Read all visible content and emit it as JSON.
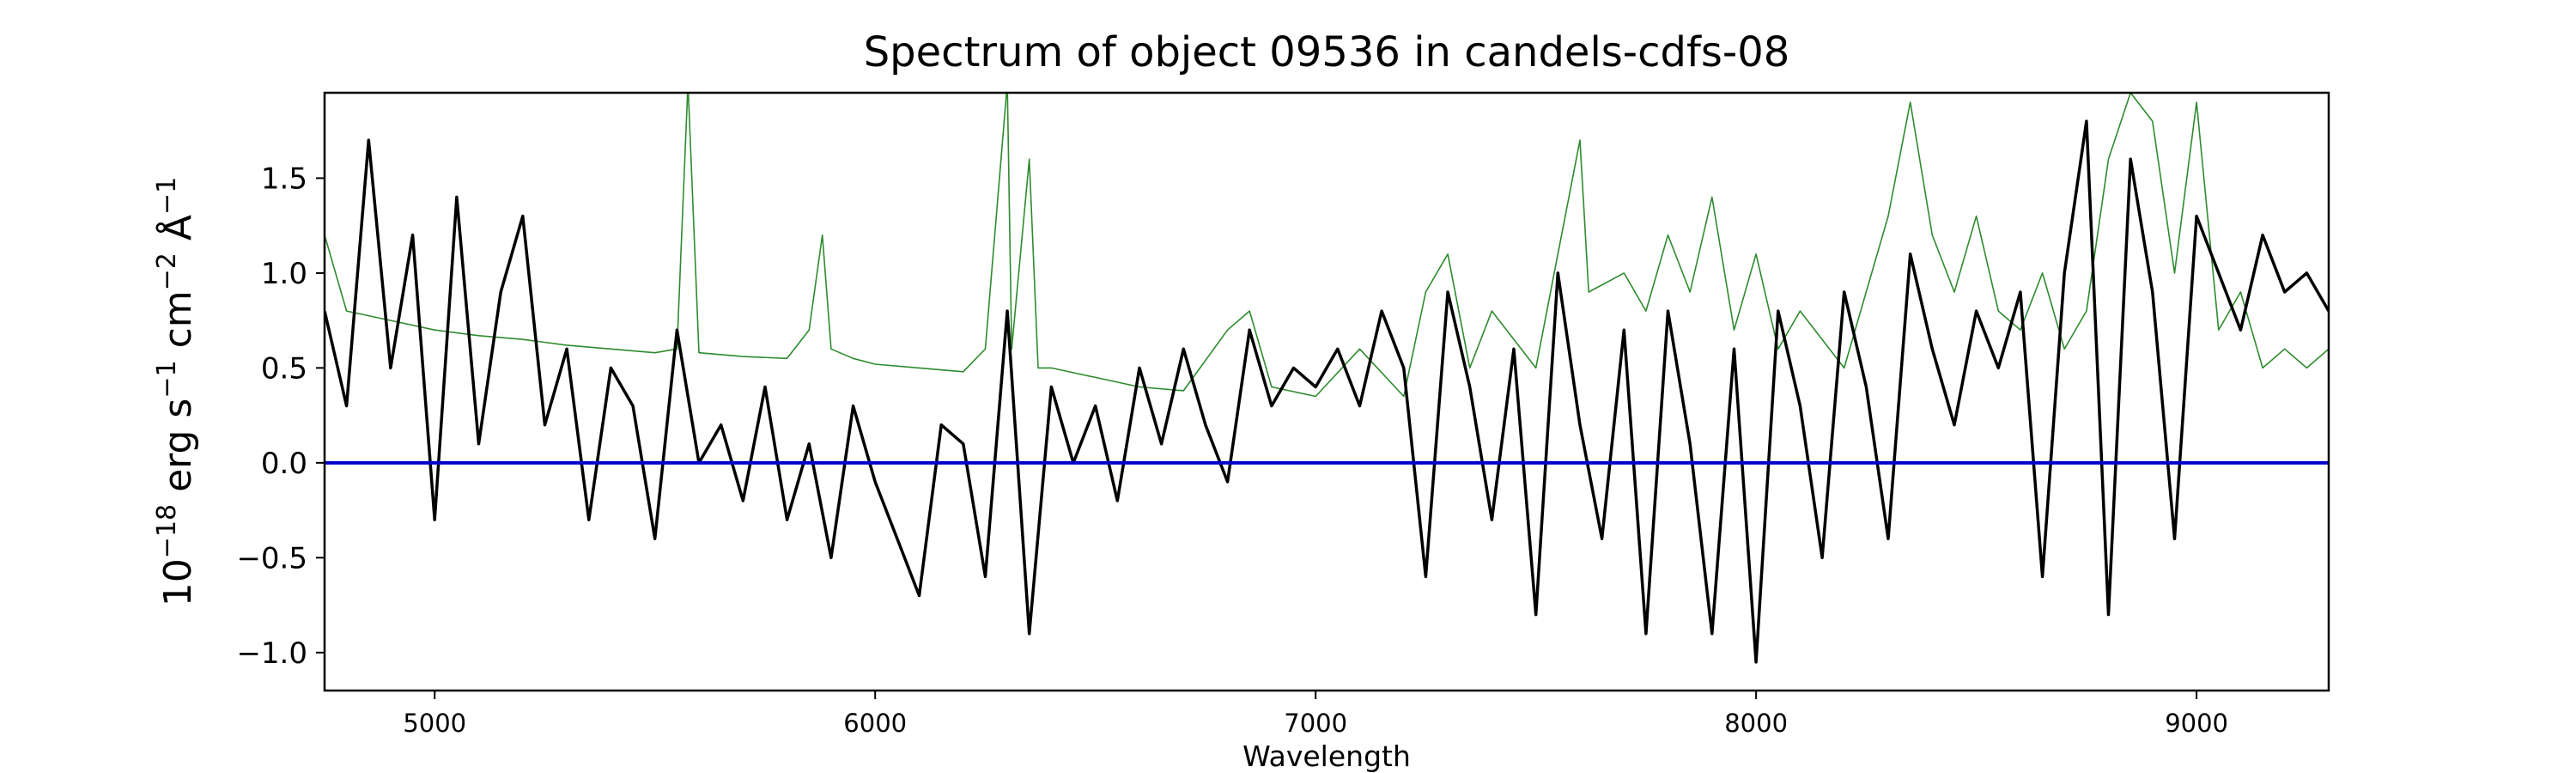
{
  "chart_data": {
    "type": "line",
    "title": "Spectrum of object 09536 in candels-cdfs-08",
    "xlabel": "Wavelength",
    "ylabel_parts": {
      "pre": "10",
      "exp1": "−18",
      "mid1": " erg s",
      "exp2": "−1",
      "mid2": " cm",
      "exp3": "−2",
      "mid3": " Å",
      "exp4": "−1"
    },
    "xlim": [
      4750,
      9300
    ],
    "ylim": [
      -1.2,
      1.95
    ],
    "x_ticks": [
      5000,
      6000,
      7000,
      8000,
      9000
    ],
    "x_tick_labels": [
      "5000",
      "6000",
      "7000",
      "8000",
      "9000"
    ],
    "y_ticks": [
      -1.0,
      -0.5,
      0.0,
      0.5,
      1.0,
      1.5
    ],
    "y_tick_labels": [
      "−1.0",
      "−0.5",
      "0.0",
      "0.5",
      "1.0",
      "1.5"
    ],
    "grid": false,
    "colors": {
      "flux": "#000000",
      "error": "#2e8b2e",
      "zero": "#0000cc"
    },
    "series": [
      {
        "role": "flux",
        "x": [
          4750,
          4800,
          4850,
          4900,
          4950,
          5000,
          5050,
          5100,
          5150,
          5200,
          5250,
          5300,
          5350,
          5400,
          5450,
          5500,
          5550,
          5600,
          5650,
          5700,
          5750,
          5800,
          5850,
          5900,
          5950,
          6000,
          6050,
          6100,
          6150,
          6200,
          6250,
          6300,
          6350,
          6400,
          6450,
          6500,
          6550,
          6600,
          6650,
          6700,
          6750,
          6800,
          6850,
          6900,
          6950,
          7000,
          7050,
          7100,
          7150,
          7200,
          7250,
          7300,
          7350,
          7400,
          7450,
          7500,
          7550,
          7600,
          7650,
          7700,
          7750,
          7800,
          7850,
          7900,
          7950,
          8000,
          8050,
          8100,
          8150,
          8200,
          8250,
          8300,
          8350,
          8400,
          8450,
          8500,
          8550,
          8600,
          8650,
          8700,
          8750,
          8800,
          8850,
          8900,
          8950,
          9000,
          9050,
          9100,
          9150,
          9200,
          9250,
          9300
        ],
        "y": [
          0.8,
          0.3,
          1.7,
          0.5,
          1.2,
          -0.3,
          1.4,
          0.1,
          0.9,
          1.3,
          0.2,
          0.6,
          -0.3,
          0.5,
          0.3,
          -0.4,
          0.7,
          0.0,
          0.2,
          -0.2,
          0.4,
          -0.3,
          0.1,
          -0.5,
          0.3,
          -0.1,
          -0.4,
          -0.7,
          0.2,
          0.1,
          -0.6,
          0.8,
          -0.9,
          0.4,
          0.0,
          0.3,
          -0.2,
          0.5,
          0.1,
          0.6,
          0.2,
          -0.1,
          0.7,
          0.3,
          0.5,
          0.4,
          0.6,
          0.3,
          0.8,
          0.5,
          -0.6,
          0.9,
          0.4,
          -0.3,
          0.6,
          -0.8,
          1.0,
          0.2,
          -0.4,
          0.7,
          -0.9,
          0.8,
          0.1,
          -0.9,
          0.6,
          -1.05,
          0.8,
          0.3,
          -0.5,
          0.9,
          0.4,
          -0.4,
          1.1,
          0.6,
          0.2,
          0.8,
          0.5,
          0.9,
          -0.6,
          1.0,
          1.8,
          -0.8,
          1.6,
          0.9,
          -0.4,
          1.3,
          1.0,
          0.7,
          1.2,
          0.9,
          1.0,
          0.8
        ]
      },
      {
        "role": "error",
        "x": [
          4750,
          4800,
          4900,
          5000,
          5100,
          5200,
          5300,
          5400,
          5500,
          5550,
          5575,
          5600,
          5700,
          5800,
          5850,
          5880,
          5900,
          5950,
          6000,
          6100,
          6200,
          6250,
          6300,
          6310,
          6350,
          6370,
          6400,
          6500,
          6600,
          6700,
          6800,
          6850,
          6900,
          7000,
          7100,
          7200,
          7250,
          7300,
          7350,
          7400,
          7500,
          7550,
          7600,
          7620,
          7700,
          7750,
          7800,
          7850,
          7900,
          7950,
          8000,
          8050,
          8100,
          8200,
          8300,
          8350,
          8400,
          8450,
          8500,
          8550,
          8600,
          8650,
          8700,
          8750,
          8800,
          8850,
          8900,
          8950,
          9000,
          9050,
          9100,
          9150,
          9200,
          9250,
          9300
        ],
        "y": [
          1.2,
          0.8,
          0.75,
          0.7,
          0.67,
          0.65,
          0.62,
          0.6,
          0.58,
          0.6,
          2.0,
          0.58,
          0.56,
          0.55,
          0.7,
          1.2,
          0.6,
          0.55,
          0.52,
          0.5,
          0.48,
          0.6,
          2.0,
          0.6,
          1.6,
          0.5,
          0.5,
          0.45,
          0.4,
          0.38,
          0.7,
          0.8,
          0.4,
          0.35,
          0.6,
          0.35,
          0.9,
          1.1,
          0.5,
          0.8,
          0.5,
          1.1,
          1.7,
          0.9,
          1.0,
          0.8,
          1.2,
          0.9,
          1.4,
          0.7,
          1.1,
          0.6,
          0.8,
          0.5,
          1.3,
          1.9,
          1.2,
          0.9,
          1.3,
          0.8,
          0.7,
          1.0,
          0.6,
          0.8,
          1.6,
          1.95,
          1.8,
          1.0,
          1.9,
          0.7,
          0.9,
          0.5,
          0.6,
          0.5,
          0.6
        ]
      }
    ],
    "hline": 0.0
  }
}
